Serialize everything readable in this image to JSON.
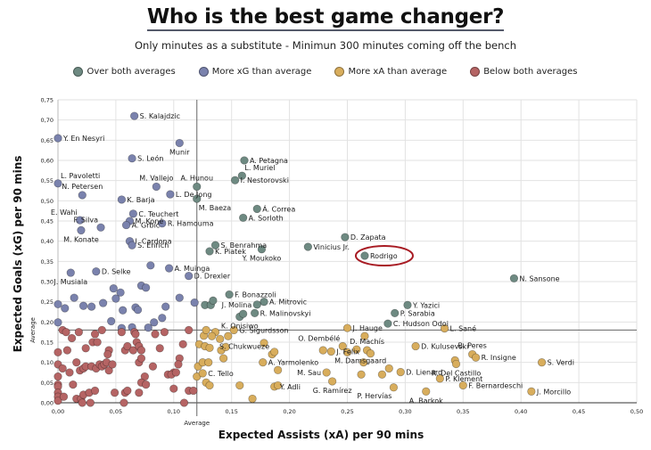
{
  "chart_data": {
    "type": "scatter",
    "title": "Who is the best game changer?",
    "subtitle": "Only minutes as a substitute - Minimun 300 minutes coming off the bench",
    "xlabel": "Expected Assists (xA) per 90 mins",
    "ylabel": "Expected Goals (xG) per 90 mins",
    "xlim": [
      0,
      0.5
    ],
    "ylim": [
      0,
      0.75
    ],
    "xticks": [
      "0,00",
      "0,05",
      "0,10",
      "0,15",
      "0,20",
      "0,25",
      "0,30",
      "0,35",
      "0,40",
      "0,45",
      "0,50"
    ],
    "yticks": [
      "0,00",
      "0,05",
      "0,10",
      "0,15",
      "0,20",
      "0,25",
      "0,30",
      "0,35",
      "0,40",
      "0,45",
      "0,50",
      "0,55",
      "0,60",
      "0,65",
      "0,70",
      "0,75"
    ],
    "grid": true,
    "averages": {
      "x": 0.12,
      "y": 0.18,
      "x_label": "Average",
      "y_label": "Average"
    },
    "highlight": {
      "player": "Rodrigo",
      "color": "#a81c24"
    },
    "legend": [
      {
        "key": "both",
        "label": "Over both averages",
        "color": "#6e8a82"
      },
      {
        "key": "xg",
        "label": "More xG than average",
        "color": "#7a82ad"
      },
      {
        "key": "xa",
        "label": "More xA than average",
        "color": "#d8ad5c"
      },
      {
        "key": "below",
        "label": "Below both averages",
        "color": "#b56464"
      }
    ],
    "series": [
      {
        "name": "Over both averages",
        "key": "both",
        "points": [
          {
            "x": 0.12,
            "y": 0.535,
            "label": "A. Hunou",
            "lp": "above"
          },
          {
            "x": 0.12,
            "y": 0.505,
            "label": "M. Baeza",
            "lp": "below-right"
          },
          {
            "x": 0.161,
            "y": 0.6,
            "label": "A. Petagna"
          },
          {
            "x": 0.159,
            "y": 0.562,
            "label": "L. Muriel",
            "lp": "above-right"
          },
          {
            "x": 0.153,
            "y": 0.551,
            "label": "I. Nestorovski"
          },
          {
            "x": 0.172,
            "y": 0.48,
            "label": "Á. Correa"
          },
          {
            "x": 0.16,
            "y": 0.458,
            "label": "A. Sorloth"
          },
          {
            "x": 0.136,
            "y": 0.39,
            "label": "S. Benrahma"
          },
          {
            "x": 0.131,
            "y": 0.375,
            "label": "K. Piatek"
          },
          {
            "x": 0.176,
            "y": 0.38,
            "label": "Y. Moukoko",
            "lp": "below"
          },
          {
            "x": 0.216,
            "y": 0.386,
            "label": "Vinicius Jr."
          },
          {
            "x": 0.248,
            "y": 0.41,
            "label": "D. Zapata"
          },
          {
            "x": 0.265,
            "y": 0.364,
            "label": "Rodrigo"
          },
          {
            "x": 0.394,
            "y": 0.308,
            "label": "N. Sansone"
          },
          {
            "x": 0.148,
            "y": 0.268,
            "label": "F. Bonazzoli"
          },
          {
            "x": 0.178,
            "y": 0.25,
            "label": "A. Mitrovic"
          },
          {
            "x": 0.172,
            "y": 0.243,
            "label": "J. Molina",
            "lp": "left"
          },
          {
            "x": 0.17,
            "y": 0.222,
            "label": "R. Malinovskyi"
          },
          {
            "x": 0.157,
            "y": 0.213,
            "label": "K. Onisiwo",
            "lp": "below"
          },
          {
            "x": 0.16,
            "y": 0.22
          },
          {
            "x": 0.127,
            "y": 0.242
          },
          {
            "x": 0.132,
            "y": 0.242
          },
          {
            "x": 0.134,
            "y": 0.253
          },
          {
            "x": 0.302,
            "y": 0.242,
            "label": "Y. Yazici"
          },
          {
            "x": 0.291,
            "y": 0.222,
            "label": "P. Sarabia"
          },
          {
            "x": 0.285,
            "y": 0.196,
            "label": "C. Hudson Odoi"
          }
        ]
      },
      {
        "name": "More xG than average",
        "key": "xg",
        "points": [
          {
            "x": 0.066,
            "y": 0.71,
            "label": "S. Kalajdzic"
          },
          {
            "x": 0.0,
            "y": 0.655,
            "label": "Y. En Nesyri"
          },
          {
            "x": 0.105,
            "y": 0.643,
            "label": "Munir",
            "lp": "below"
          },
          {
            "x": 0.064,
            "y": 0.605,
            "label": "S. León"
          },
          {
            "x": 0.0,
            "y": 0.543,
            "label": "L. Pavoletti",
            "lp": "above-right"
          },
          {
            "x": 0.021,
            "y": 0.514,
            "label": "N. Petersen",
            "lp": "above"
          },
          {
            "x": 0.055,
            "y": 0.503,
            "label": "K. Barja"
          },
          {
            "x": 0.085,
            "y": 0.535,
            "label": "M. Vallejo",
            "lp": "above"
          },
          {
            "x": 0.097,
            "y": 0.516,
            "label": "L. De Jong"
          },
          {
            "x": 0.019,
            "y": 0.452,
            "label": "E. Wahi",
            "lp": "above-left"
          },
          {
            "x": 0.02,
            "y": 0.427,
            "label": "M. Konate",
            "lp": "below"
          },
          {
            "x": 0.037,
            "y": 0.434,
            "label": "F. Silva",
            "lp": "above-left"
          },
          {
            "x": 0.065,
            "y": 0.468,
            "label": "C. Teuchert"
          },
          {
            "x": 0.062,
            "y": 0.45,
            "label": "M. Koné"
          },
          {
            "x": 0.059,
            "y": 0.44,
            "label": "A. Grbic"
          },
          {
            "x": 0.09,
            "y": 0.444,
            "label": "R. Hamouma"
          },
          {
            "x": 0.062,
            "y": 0.4,
            "label": "I. Cardona"
          },
          {
            "x": 0.064,
            "y": 0.39,
            "label": "S. Enrich"
          },
          {
            "x": 0.08,
            "y": 0.34
          },
          {
            "x": 0.096,
            "y": 0.333,
            "label": "A. Muinga"
          },
          {
            "x": 0.011,
            "y": 0.322,
            "label": "J. Musiala",
            "lp": "below"
          },
          {
            "x": 0.033,
            "y": 0.325,
            "label": "D. Selke"
          },
          {
            "x": 0.113,
            "y": 0.314,
            "label": "D. Drexler"
          },
          {
            "x": 0.0,
            "y": 0.244
          },
          {
            "x": 0.006,
            "y": 0.234
          },
          {
            "x": 0.014,
            "y": 0.26
          },
          {
            "x": 0.022,
            "y": 0.24
          },
          {
            "x": 0.029,
            "y": 0.238
          },
          {
            "x": 0.039,
            "y": 0.247
          },
          {
            "x": 0.048,
            "y": 0.283
          },
          {
            "x": 0.05,
            "y": 0.258
          },
          {
            "x": 0.054,
            "y": 0.273
          },
          {
            "x": 0.056,
            "y": 0.229
          },
          {
            "x": 0.067,
            "y": 0.236
          },
          {
            "x": 0.069,
            "y": 0.23
          },
          {
            "x": 0.072,
            "y": 0.29
          },
          {
            "x": 0.076,
            "y": 0.285
          },
          {
            "x": 0.0,
            "y": 0.199
          },
          {
            "x": 0.093,
            "y": 0.238
          },
          {
            "x": 0.078,
            "y": 0.186
          },
          {
            "x": 0.09,
            "y": 0.21
          },
          {
            "x": 0.105,
            "y": 0.26
          },
          {
            "x": 0.118,
            "y": 0.248
          },
          {
            "x": 0.046,
            "y": 0.202
          },
          {
            "x": 0.083,
            "y": 0.199
          },
          {
            "x": 0.064,
            "y": 0.187
          },
          {
            "x": 0.055,
            "y": 0.185
          }
        ]
      },
      {
        "name": "More xA than average",
        "key": "xa",
        "points": [
          {
            "x": 0.152,
            "y": 0.18,
            "label": "G. Sigurdsson"
          },
          {
            "x": 0.126,
            "y": 0.166
          },
          {
            "x": 0.136,
            "y": 0.175
          },
          {
            "x": 0.147,
            "y": 0.165
          },
          {
            "x": 0.128,
            "y": 0.18
          },
          {
            "x": 0.133,
            "y": 0.165
          },
          {
            "x": 0.14,
            "y": 0.158
          },
          {
            "x": 0.122,
            "y": 0.145
          },
          {
            "x": 0.127,
            "y": 0.14
          },
          {
            "x": 0.131,
            "y": 0.136
          },
          {
            "x": 0.141,
            "y": 0.13
          },
          {
            "x": 0.145,
            "y": 0.138
          },
          {
            "x": 0.121,
            "y": 0.09
          },
          {
            "x": 0.125,
            "y": 0.1
          },
          {
            "x": 0.13,
            "y": 0.1
          },
          {
            "x": 0.143,
            "y": 0.11
          },
          {
            "x": 0.12,
            "y": 0.065
          },
          {
            "x": 0.125,
            "y": 0.073,
            "label": "C. Tello"
          },
          {
            "x": 0.128,
            "y": 0.05
          },
          {
            "x": 0.131,
            "y": 0.043
          },
          {
            "x": 0.157,
            "y": 0.043
          },
          {
            "x": 0.168,
            "y": 0.01
          },
          {
            "x": 0.178,
            "y": 0.148
          },
          {
            "x": 0.185,
            "y": 0.12,
            "label": "S. Chukwueze",
            "lp": "above-left"
          },
          {
            "x": 0.187,
            "y": 0.126
          },
          {
            "x": 0.177,
            "y": 0.1,
            "label": "A. Yarmolenko"
          },
          {
            "x": 0.19,
            "y": 0.081
          },
          {
            "x": 0.232,
            "y": 0.075,
            "label": "M. Sau",
            "lp": "left"
          },
          {
            "x": 0.187,
            "y": 0.04,
            "label": "Y. Adli"
          },
          {
            "x": 0.19,
            "y": 0.043
          },
          {
            "x": 0.229,
            "y": 0.13
          },
          {
            "x": 0.246,
            "y": 0.14,
            "label": "O. Dembélé",
            "lp": "above-left"
          },
          {
            "x": 0.25,
            "y": 0.185,
            "label": "J. Hauge"
          },
          {
            "x": 0.258,
            "y": 0.132
          },
          {
            "x": 0.25,
            "y": 0.125
          },
          {
            "x": 0.265,
            "y": 0.165
          },
          {
            "x": 0.236,
            "y": 0.127,
            "label": "J. Felix"
          },
          {
            "x": 0.267,
            "y": 0.13,
            "label": "D. Machís",
            "lp": "above"
          },
          {
            "x": 0.27,
            "y": 0.122
          },
          {
            "x": 0.264,
            "y": 0.1
          },
          {
            "x": 0.262,
            "y": 0.07
          },
          {
            "x": 0.28,
            "y": 0.07
          },
          {
            "x": 0.237,
            "y": 0.053,
            "label": "G. Ramírez",
            "lp": "below"
          },
          {
            "x": 0.286,
            "y": 0.085,
            "label": "M. Damsgaard",
            "lp": "above-left"
          },
          {
            "x": 0.296,
            "y": 0.076,
            "label": "D. Lienard"
          },
          {
            "x": 0.29,
            "y": 0.038,
            "label": "P. Hervías",
            "lp": "below-left"
          },
          {
            "x": 0.318,
            "y": 0.028,
            "label": "A. Barkok",
            "lp": "below"
          },
          {
            "x": 0.309,
            "y": 0.14,
            "label": "D. Kulusevski"
          },
          {
            "x": 0.334,
            "y": 0.184,
            "label": "L. Sané"
          },
          {
            "x": 0.33,
            "y": 0.06,
            "label": "P. Klement"
          },
          {
            "x": 0.343,
            "y": 0.105
          },
          {
            "x": 0.35,
            "y": 0.043,
            "label": "F. Bernardeschi"
          },
          {
            "x": 0.358,
            "y": 0.12,
            "label": "B. Peres",
            "lp": "above"
          },
          {
            "x": 0.361,
            "y": 0.112,
            "label": "R. Insigne"
          },
          {
            "x": 0.344,
            "y": 0.096,
            "label": "R. Del Castillo",
            "lp": "below"
          },
          {
            "x": 0.418,
            "y": 0.1,
            "label": "S. Verdi"
          },
          {
            "x": 0.409,
            "y": 0.028,
            "label": "J. Morcillo"
          }
        ]
      },
      {
        "name": "Below both averages",
        "key": "below",
        "points": [
          {
            "x": 0.004,
            "y": 0.18
          },
          {
            "x": 0.007,
            "y": 0.175
          },
          {
            "x": 0.018,
            "y": 0.175
          },
          {
            "x": 0.032,
            "y": 0.17
          },
          {
            "x": 0.038,
            "y": 0.18
          },
          {
            "x": 0.055,
            "y": 0.175
          },
          {
            "x": 0.066,
            "y": 0.175
          },
          {
            "x": 0.067,
            "y": 0.17
          },
          {
            "x": 0.084,
            "y": 0.17
          },
          {
            "x": 0.092,
            "y": 0.175
          },
          {
            "x": 0.113,
            "y": 0.18
          },
          {
            "x": 0.012,
            "y": 0.16
          },
          {
            "x": 0.0,
            "y": 0.125
          },
          {
            "x": 0.008,
            "y": 0.13
          },
          {
            "x": 0.024,
            "y": 0.135
          },
          {
            "x": 0.03,
            "y": 0.15
          },
          {
            "x": 0.034,
            "y": 0.15
          },
          {
            "x": 0.044,
            "y": 0.13
          },
          {
            "x": 0.058,
            "y": 0.13
          },
          {
            "x": 0.06,
            "y": 0.14
          },
          {
            "x": 0.065,
            "y": 0.13
          },
          {
            "x": 0.068,
            "y": 0.15
          },
          {
            "x": 0.07,
            "y": 0.14
          },
          {
            "x": 0.072,
            "y": 0.13
          },
          {
            "x": 0.088,
            "y": 0.135
          },
          {
            "x": 0.108,
            "y": 0.145
          },
          {
            "x": 0.095,
            "y": 0.07
          },
          {
            "x": 0.1,
            "y": 0.075
          },
          {
            "x": 0.098,
            "y": 0.07
          },
          {
            "x": 0.0,
            "y": 0.095
          },
          {
            "x": 0.004,
            "y": 0.085
          },
          {
            "x": 0.01,
            "y": 0.075
          },
          {
            "x": 0.016,
            "y": 0.1
          },
          {
            "x": 0.019,
            "y": 0.08
          },
          {
            "x": 0.022,
            "y": 0.085
          },
          {
            "x": 0.024,
            "y": 0.09
          },
          {
            "x": 0.029,
            "y": 0.09
          },
          {
            "x": 0.033,
            "y": 0.085
          },
          {
            "x": 0.036,
            "y": 0.095
          },
          {
            "x": 0.038,
            "y": 0.09
          },
          {
            "x": 0.04,
            "y": 0.095
          },
          {
            "x": 0.042,
            "y": 0.1
          },
          {
            "x": 0.043,
            "y": 0.12
          },
          {
            "x": 0.044,
            "y": 0.08
          },
          {
            "x": 0.047,
            "y": 0.095
          },
          {
            "x": 0.07,
            "y": 0.1
          },
          {
            "x": 0.072,
            "y": 0.11
          },
          {
            "x": 0.075,
            "y": 0.065
          },
          {
            "x": 0.082,
            "y": 0.09
          },
          {
            "x": 0.105,
            "y": 0.11
          },
          {
            "x": 0.104,
            "y": 0.095
          },
          {
            "x": 0.102,
            "y": 0.075
          },
          {
            "x": 0.0,
            "y": 0.065
          },
          {
            "x": 0.0,
            "y": 0.045
          },
          {
            "x": 0.0,
            "y": 0.04
          },
          {
            "x": 0.0,
            "y": 0.025
          },
          {
            "x": 0.0,
            "y": 0.015
          },
          {
            "x": 0.0,
            "y": 0.005
          },
          {
            "x": 0.005,
            "y": 0.015
          },
          {
            "x": 0.013,
            "y": 0.045
          },
          {
            "x": 0.016,
            "y": 0.01
          },
          {
            "x": 0.02,
            "y": 0.01
          },
          {
            "x": 0.022,
            "y": 0.02
          },
          {
            "x": 0.027,
            "y": 0.025
          },
          {
            "x": 0.021,
            "y": 0.0
          },
          {
            "x": 0.028,
            "y": 0.0
          },
          {
            "x": 0.032,
            "y": 0.03
          },
          {
            "x": 0.049,
            "y": 0.025
          },
          {
            "x": 0.058,
            "y": 0.025
          },
          {
            "x": 0.06,
            "y": 0.03
          },
          {
            "x": 0.057,
            "y": 0.0
          },
          {
            "x": 0.07,
            "y": 0.025
          },
          {
            "x": 0.072,
            "y": 0.05
          },
          {
            "x": 0.076,
            "y": 0.045
          },
          {
            "x": 0.1,
            "y": 0.035
          },
          {
            "x": 0.113,
            "y": 0.03
          },
          {
            "x": 0.117,
            "y": 0.03
          },
          {
            "x": 0.109,
            "y": 0.0
          }
        ]
      }
    ]
  }
}
